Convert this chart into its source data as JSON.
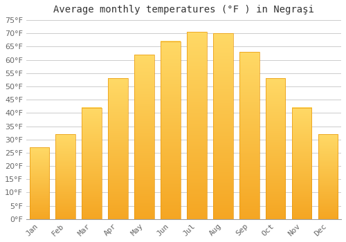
{
  "title": "Average monthly temperatures (°F ) in Negraşi",
  "months": [
    "Jan",
    "Feb",
    "Mar",
    "Apr",
    "May",
    "Jun",
    "Jul",
    "Aug",
    "Sep",
    "Oct",
    "Nov",
    "Dec"
  ],
  "values": [
    27,
    32,
    42,
    53,
    62,
    67,
    70.5,
    70,
    63,
    53,
    42,
    32
  ],
  "bar_color_bottom": "#F5A623",
  "bar_color_top": "#FFD966",
  "bar_edge_color": "#E8960A",
  "background_color": "#FFFFFF",
  "grid_color": "#CCCCCC",
  "text_color": "#666666",
  "title_color": "#333333",
  "ylim": [
    0,
    75
  ],
  "yticks": [
    0,
    5,
    10,
    15,
    20,
    25,
    30,
    35,
    40,
    45,
    50,
    55,
    60,
    65,
    70,
    75
  ],
  "title_fontsize": 10,
  "tick_fontsize": 8,
  "bar_width": 0.75
}
